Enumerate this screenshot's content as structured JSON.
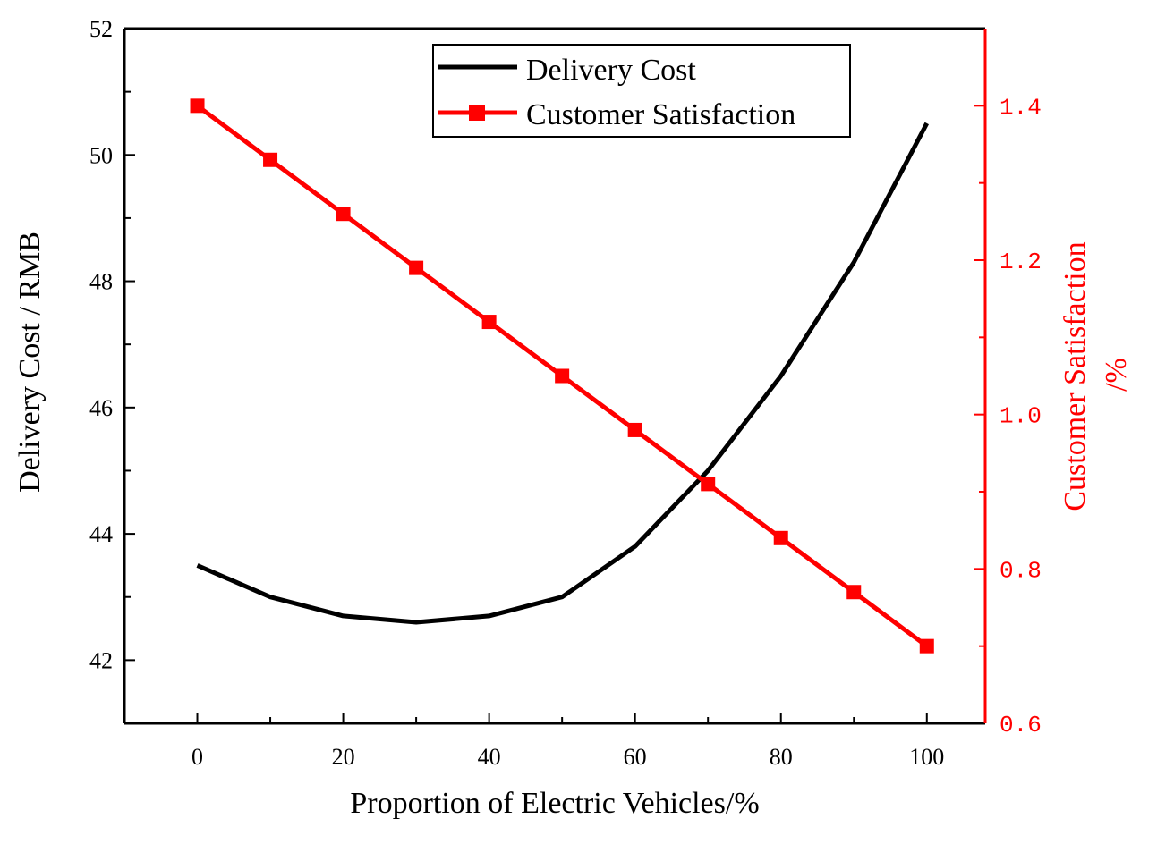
{
  "chart_data": {
    "type": "line",
    "xlabel": "Proportion of Electric Vehicles/%",
    "ylabel_left": "Delivery Cost / RMB",
    "ylabel_right_line1": "Customer Satisfaction",
    "ylabel_right_line2": "/%",
    "xlim": [
      -10,
      108
    ],
    "ylim_left": [
      41,
      52
    ],
    "ylim_right": [
      0.6,
      1.5
    ],
    "x_ticks": [
      0,
      20,
      40,
      60,
      80,
      100
    ],
    "y_left_ticks": [
      42,
      44,
      46,
      48,
      50,
      52
    ],
    "y_right_ticks": [
      "0.6",
      "0.8",
      "1.0",
      "1.2",
      "1.4"
    ],
    "x": [
      0,
      10,
      20,
      30,
      40,
      50,
      60,
      70,
      80,
      90,
      100
    ],
    "series": [
      {
        "name": "Delivery Cost",
        "axis": "left",
        "color": "#000000",
        "marker": "none",
        "values": [
          43.5,
          43.0,
          42.7,
          42.6,
          42.7,
          43.0,
          43.8,
          45.0,
          46.5,
          48.3,
          50.5
        ]
      },
      {
        "name": "Customer Satisfaction",
        "axis": "right",
        "color": "#ff0000",
        "marker": "square",
        "values": [
          1.4,
          1.33,
          1.26,
          1.19,
          1.12,
          1.05,
          0.98,
          0.91,
          0.84,
          0.77,
          0.7
        ]
      }
    ],
    "legend_position": "top-right"
  }
}
